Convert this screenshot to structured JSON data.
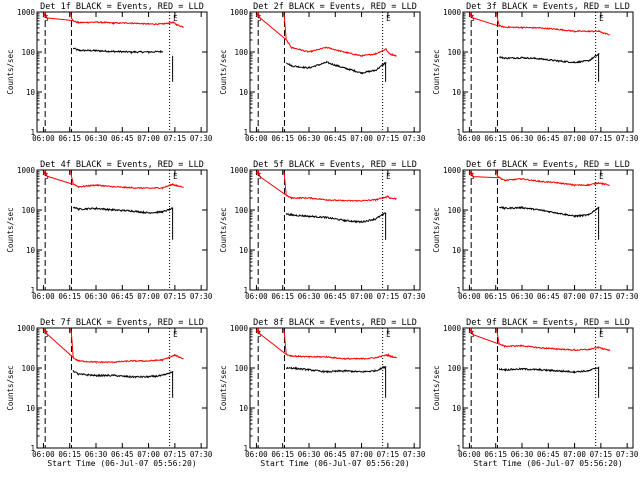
{
  "colors": {
    "events": "#000000",
    "lld": "#ff0000",
    "axes": "#000000"
  },
  "chart_data": [
    {
      "type": "line",
      "title": "Det 1f BLACK = Events, RED = LLD",
      "xlabel": "",
      "ylabel": "Counts/sec",
      "yscale": "log",
      "ylim": [
        1,
        1000
      ],
      "x_ticks": [
        "06:00",
        "06:15",
        "06:30",
        "06:45",
        "07:00",
        "07:15",
        "07:30"
      ],
      "y_ticks": [
        "1",
        "10",
        "100",
        "1000"
      ],
      "x_minutes": [
        0,
        2,
        6,
        8,
        15,
        17,
        20,
        30,
        40,
        50,
        60,
        68,
        74,
        75,
        76,
        80
      ],
      "markers": {
        "S": 1,
        "E": 74
      },
      "vlines_dash": [
        1,
        16
      ],
      "vlines_dot": [
        72
      ],
      "series": [
        {
          "values": [
            null,
            null,
            null,
            null,
            null,
            125,
            110,
            108,
            103,
            100,
            100,
            103,
            null,
            null,
            null,
            null
          ]
        },
        {
          "values": [
            900,
            700,
            null,
            null,
            null,
            600,
            540,
            560,
            530,
            530,
            500,
            500,
            550,
            520,
            480,
            420
          ]
        }
      ]
    },
    {
      "type": "line",
      "title": "Det 2f BLACK = Events, RED = LLD",
      "xlabel": "",
      "ylabel": "Counts/sec",
      "yscale": "log",
      "ylim": [
        1,
        1000
      ],
      "x_ticks": [
        "06:00",
        "06:15",
        "06:30",
        "06:45",
        "07:00",
        "07:15",
        "07:30"
      ],
      "y_ticks": [
        "1",
        "10",
        "100",
        "1000"
      ],
      "x_minutes": [
        0,
        2,
        6,
        8,
        15,
        17,
        20,
        30,
        40,
        50,
        60,
        68,
        74,
        75,
        76,
        80
      ],
      "markers": {
        "S": 1,
        "E": 74
      },
      "vlines_dash": [
        1,
        16
      ],
      "vlines_dot": [
        72
      ],
      "series": [
        {
          "values": [
            null,
            null,
            null,
            null,
            null,
            55,
            45,
            40,
            55,
            40,
            30,
            35,
            55,
            null,
            null,
            null
          ]
        },
        {
          "values": [
            900,
            700,
            null,
            null,
            null,
            200,
            130,
            100,
            130,
            100,
            80,
            90,
            120,
            100,
            90,
            80
          ]
        }
      ]
    },
    {
      "type": "line",
      "title": "Det 3f BLACK = Events, RED = LLD",
      "xlabel": "",
      "ylabel": "Counts/sec",
      "yscale": "log",
      "ylim": [
        1,
        1000
      ],
      "x_ticks": [
        "06:00",
        "06:15",
        "06:30",
        "06:45",
        "07:00",
        "07:15",
        "07:30"
      ],
      "y_ticks": [
        "1",
        "10",
        "100",
        "1000"
      ],
      "x_minutes": [
        0,
        2,
        6,
        8,
        15,
        17,
        20,
        30,
        40,
        50,
        60,
        68,
        74,
        75,
        76,
        80
      ],
      "markers": {
        "S": 1,
        "E": 74
      },
      "vlines_dash": [
        1,
        16
      ],
      "vlines_dot": [
        72
      ],
      "series": [
        {
          "values": [
            null,
            null,
            null,
            null,
            null,
            75,
            70,
            72,
            68,
            60,
            55,
            60,
            90,
            null,
            null,
            null
          ]
        },
        {
          "values": [
            900,
            700,
            null,
            null,
            null,
            450,
            420,
            410,
            400,
            370,
            330,
            330,
            330,
            320,
            300,
            270
          ]
        }
      ]
    },
    {
      "type": "line",
      "title": "Det 4f BLACK = Events, RED = LLD",
      "xlabel": "",
      "ylabel": "Counts/sec",
      "yscale": "log",
      "ylim": [
        1,
        1000
      ],
      "x_ticks": [
        "06:00",
        "06:15",
        "06:30",
        "06:45",
        "07:00",
        "07:15",
        "07:30"
      ],
      "y_ticks": [
        "1",
        "10",
        "100",
        "1000"
      ],
      "x_minutes": [
        0,
        2,
        6,
        8,
        15,
        17,
        20,
        30,
        40,
        50,
        60,
        68,
        74,
        75,
        76,
        80
      ],
      "markers": {
        "S": 1,
        "E": 74
      },
      "vlines_dash": [
        1,
        16
      ],
      "vlines_dot": [
        72
      ],
      "series": [
        {
          "values": [
            null,
            null,
            null,
            null,
            null,
            120,
            105,
            110,
            100,
            95,
            85,
            90,
            110,
            null,
            null,
            null
          ]
        },
        {
          "values": [
            900,
            700,
            null,
            null,
            null,
            450,
            380,
            420,
            380,
            360,
            350,
            360,
            440,
            420,
            400,
            380
          ]
        }
      ]
    },
    {
      "type": "line",
      "title": "Det 5f BLACK = Events, RED = LLD",
      "xlabel": "",
      "ylabel": "Counts/sec",
      "yscale": "log",
      "ylim": [
        1,
        1000
      ],
      "x_ticks": [
        "06:00",
        "06:15",
        "06:30",
        "06:45",
        "07:00",
        "07:15",
        "07:30"
      ],
      "y_ticks": [
        "1",
        "10",
        "100",
        "1000"
      ],
      "x_minutes": [
        0,
        2,
        6,
        8,
        15,
        17,
        20,
        30,
        40,
        50,
        60,
        68,
        74,
        75,
        76,
        80
      ],
      "markers": {
        "S": 1,
        "E": 74
      },
      "vlines_dash": [
        1,
        16
      ],
      "vlines_dot": [
        72
      ],
      "series": [
        {
          "values": [
            null,
            null,
            null,
            null,
            null,
            80,
            75,
            70,
            65,
            55,
            50,
            60,
            85,
            null,
            null,
            null
          ]
        },
        {
          "values": [
            900,
            700,
            null,
            null,
            null,
            230,
            200,
            200,
            180,
            170,
            170,
            180,
            210,
            220,
            200,
            190
          ]
        }
      ]
    },
    {
      "type": "line",
      "title": "Det 6f BLACK = Events, RED = LLD",
      "xlabel": "",
      "ylabel": "Counts/sec",
      "yscale": "log",
      "ylim": [
        1,
        1000
      ],
      "x_ticks": [
        "06:00",
        "06:15",
        "06:30",
        "06:45",
        "07:00",
        "07:15",
        "07:30"
      ],
      "y_ticks": [
        "1",
        "10",
        "100",
        "1000"
      ],
      "x_minutes": [
        0,
        2,
        6,
        8,
        15,
        17,
        20,
        30,
        40,
        50,
        60,
        68,
        74,
        75,
        76,
        80
      ],
      "markers": {
        "S": 1,
        "E": 74
      },
      "vlines_dash": [
        1,
        16
      ],
      "vlines_dot": [
        72
      ],
      "series": [
        {
          "values": [
            null,
            null,
            null,
            null,
            null,
            120,
            110,
            115,
            100,
            85,
            70,
            75,
            120,
            null,
            null,
            null
          ]
        },
        {
          "values": [
            900,
            700,
            null,
            null,
            null,
            650,
            550,
            600,
            520,
            480,
            420,
            420,
            480,
            470,
            450,
            420
          ]
        }
      ]
    },
    {
      "type": "line",
      "title": "Det 7f BLACK = Events, RED = LLD",
      "xlabel": "Start Time (06-Jul-07 05:56:20)",
      "ylabel": "Counts/sec",
      "yscale": "log",
      "ylim": [
        1,
        1000
      ],
      "x_ticks": [
        "06:00",
        "06:15",
        "06:30",
        "06:45",
        "07:00",
        "07:15",
        "07:30"
      ],
      "y_ticks": [
        "1",
        "10",
        "100",
        "1000"
      ],
      "x_minutes": [
        0,
        2,
        6,
        8,
        15,
        17,
        20,
        30,
        40,
        50,
        60,
        68,
        74,
        75,
        76,
        80
      ],
      "markers": {
        "S": 1,
        "E": 74
      },
      "vlines_dash": [
        1,
        16
      ],
      "vlines_dot": [
        72
      ],
      "series": [
        {
          "values": [
            null,
            null,
            null,
            null,
            null,
            85,
            70,
            65,
            65,
            60,
            60,
            65,
            80,
            null,
            null,
            null
          ]
        },
        {
          "values": [
            900,
            700,
            null,
            null,
            null,
            180,
            150,
            140,
            140,
            150,
            150,
            160,
            200,
            210,
            200,
            170
          ]
        }
      ]
    },
    {
      "type": "line",
      "title": "Det 8f BLACK = Events, RED = LLD",
      "xlabel": "Start Time (06-Jul-07 05:56:20)",
      "ylabel": "Counts/sec",
      "yscale": "log",
      "ylim": [
        1,
        1000
      ],
      "x_ticks": [
        "06:00",
        "06:15",
        "06:30",
        "06:45",
        "07:00",
        "07:15",
        "07:30"
      ],
      "y_ticks": [
        "1",
        "10",
        "100",
        "1000"
      ],
      "x_minutes": [
        0,
        2,
        6,
        8,
        15,
        17,
        20,
        30,
        40,
        50,
        60,
        68,
        74,
        75,
        76,
        80
      ],
      "markers": {
        "S": 1,
        "E": 74
      },
      "vlines_dash": [
        1,
        16
      ],
      "vlines_dot": [
        72
      ],
      "series": [
        {
          "values": [
            null,
            null,
            null,
            null,
            null,
            100,
            100,
            90,
            80,
            85,
            80,
            85,
            110,
            null,
            null,
            null
          ]
        },
        {
          "values": [
            900,
            700,
            null,
            null,
            null,
            220,
            200,
            190,
            190,
            170,
            170,
            180,
            210,
            210,
            200,
            180
          ]
        }
      ]
    },
    {
      "type": "line",
      "title": "Det 9f BLACK = Events, RED = LLD",
      "xlabel": "Start Time (06-Jul-07 05:56:20)",
      "ylabel": "Counts/sec",
      "yscale": "log",
      "ylim": [
        1,
        1000
      ],
      "x_ticks": [
        "06:00",
        "06:15",
        "06:30",
        "06:45",
        "07:00",
        "07:15",
        "07:30"
      ],
      "y_ticks": [
        "1",
        "10",
        "100",
        "1000"
      ],
      "x_minutes": [
        0,
        2,
        6,
        8,
        15,
        17,
        20,
        30,
        40,
        50,
        60,
        68,
        74,
        75,
        76,
        80
      ],
      "markers": {
        "S": 1,
        "E": 74
      },
      "vlines_dash": [
        1,
        16
      ],
      "vlines_dot": [
        72
      ],
      "series": [
        {
          "values": [
            null,
            null,
            null,
            null,
            null,
            95,
            90,
            95,
            90,
            85,
            80,
            85,
            105,
            null,
            null,
            null
          ]
        },
        {
          "values": [
            900,
            700,
            null,
            null,
            null,
            400,
            350,
            360,
            320,
            300,
            280,
            290,
            330,
            320,
            300,
            280
          ]
        }
      ]
    }
  ]
}
